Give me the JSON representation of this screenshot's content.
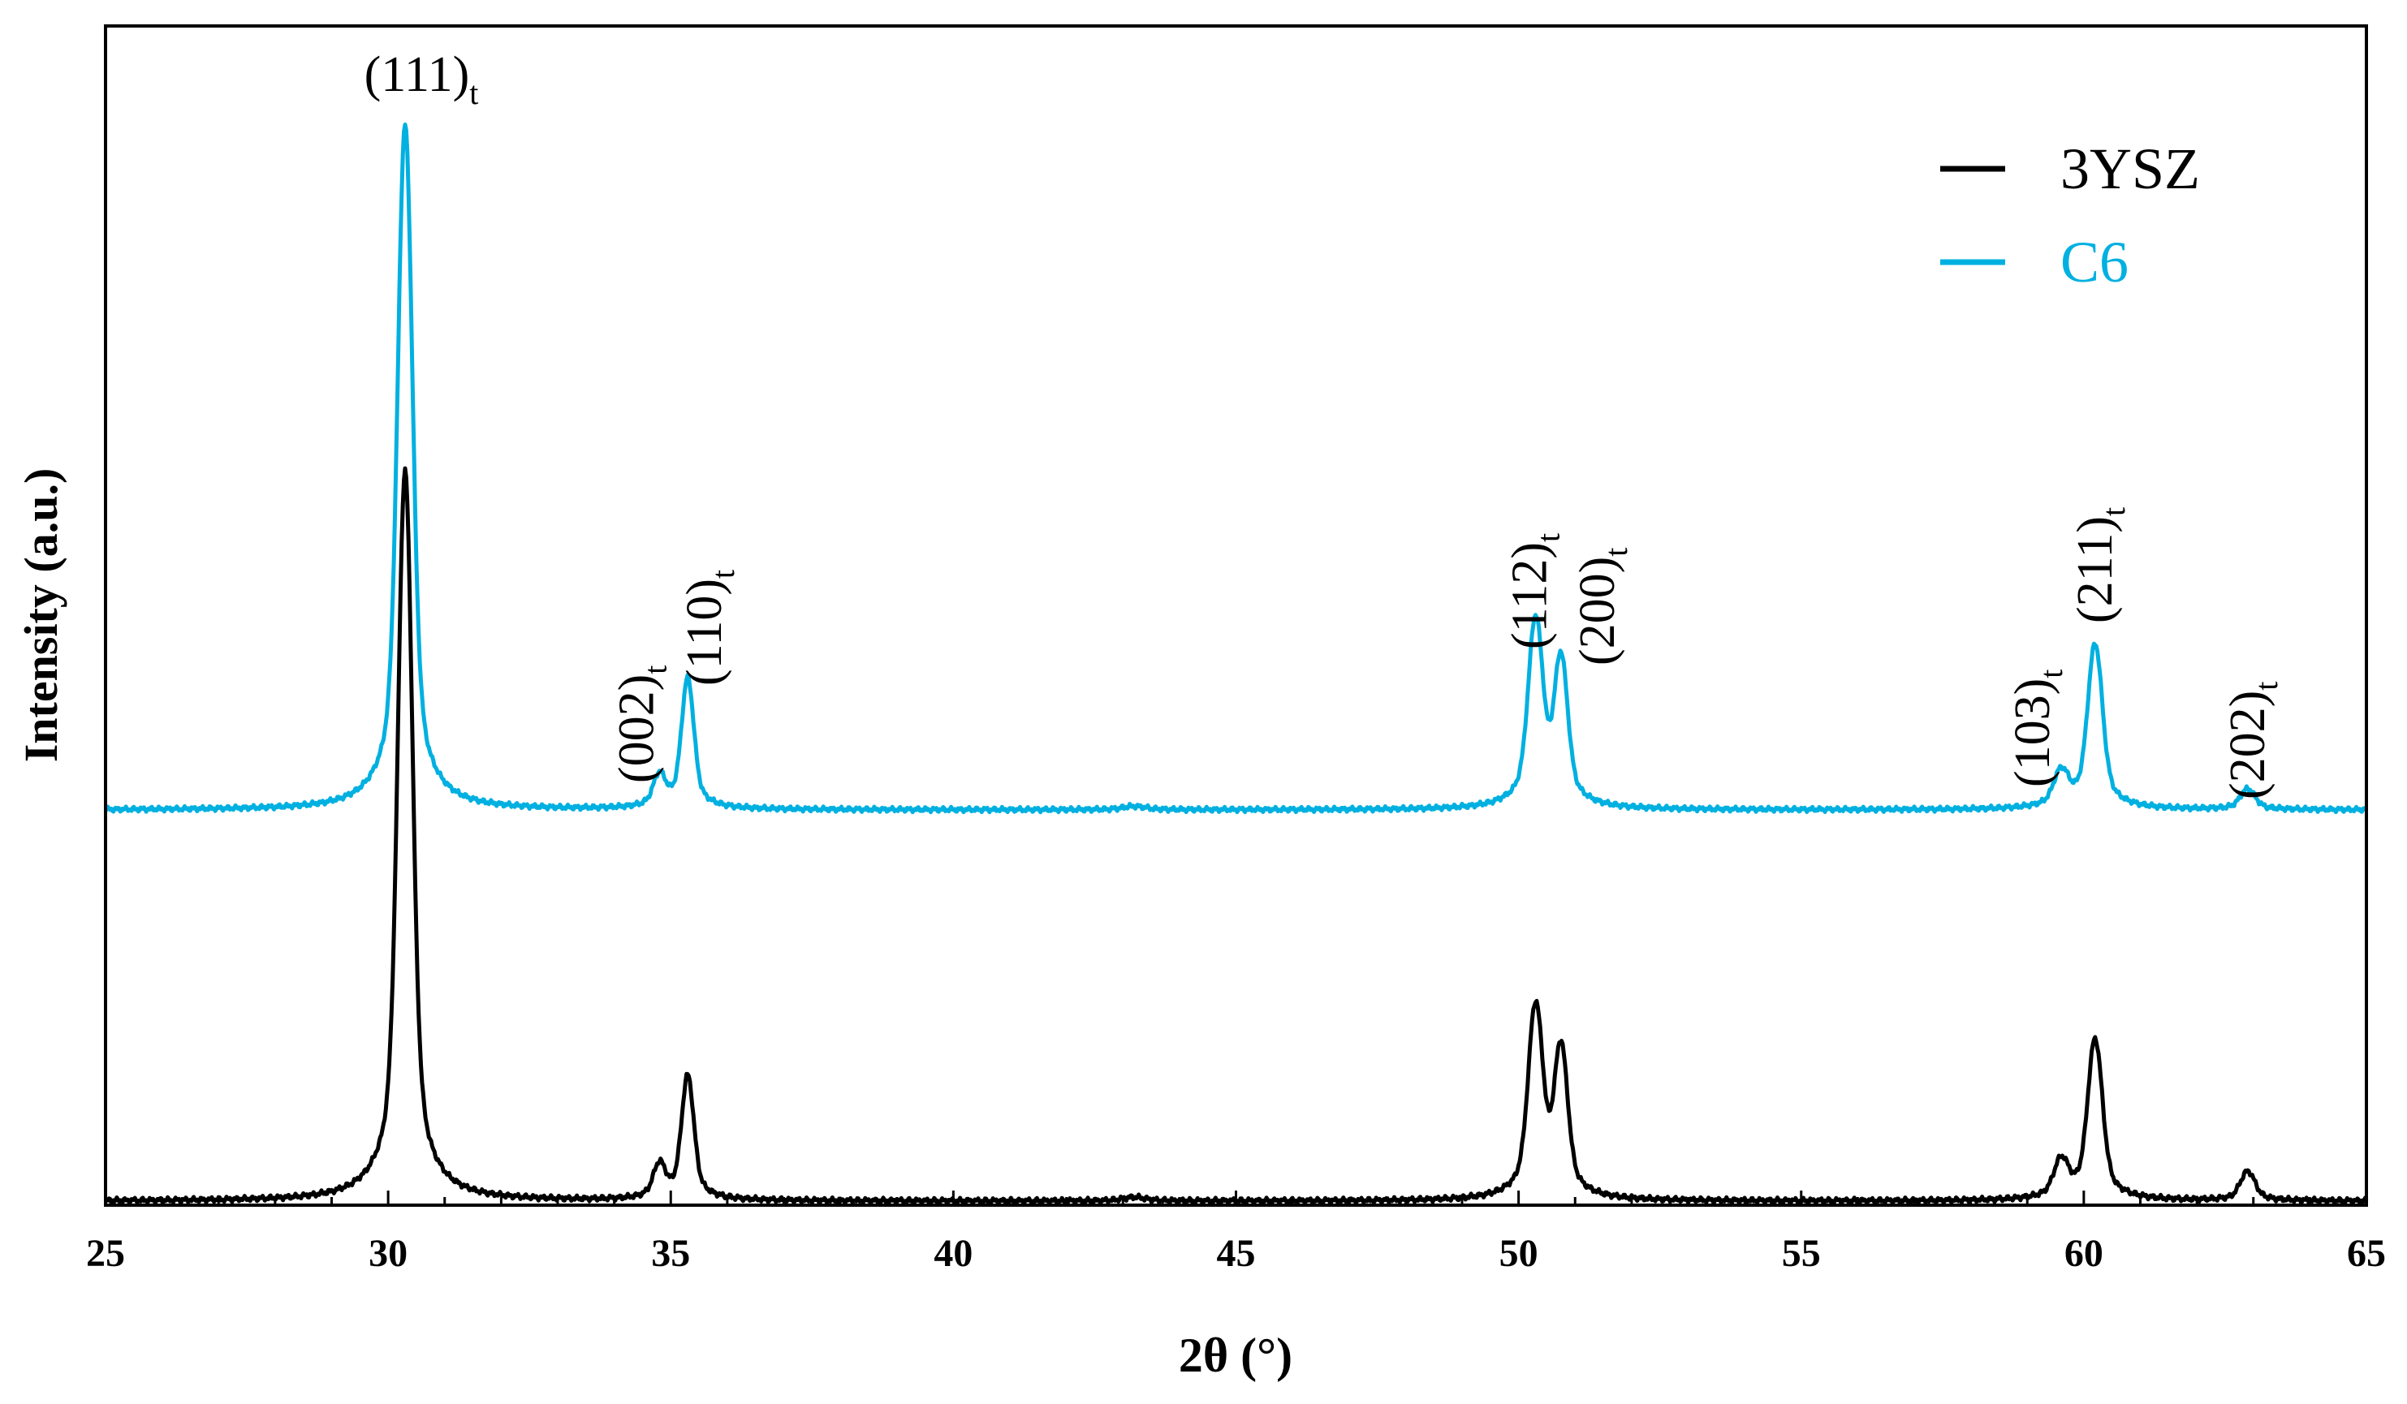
{
  "chart_data": {
    "type": "line",
    "xlabel": "2θ (°)",
    "ylabel": "Intensity (a.u.)",
    "xlim": [
      25,
      65
    ],
    "x_ticks": [
      "25",
      "30",
      "35",
      "40",
      "45",
      "50",
      "55",
      "60",
      "65"
    ],
    "y_ticks_shown": false,
    "grid": false,
    "legend_position": "top-right",
    "colors": {
      "3YSZ": "#000000",
      "C6": "#00b0e0"
    },
    "series": [
      {
        "name": "3YSZ",
        "peaks": [
          {
            "x": 30.3,
            "height": 1.0
          },
          {
            "x": 34.8,
            "height": 0.045
          },
          {
            "x": 35.3,
            "height": 0.17
          },
          {
            "x": 43.2,
            "height": 0.005
          },
          {
            "x": 50.3,
            "height": 0.26
          },
          {
            "x": 50.75,
            "height": 0.2
          },
          {
            "x": 59.6,
            "height": 0.05
          },
          {
            "x": 60.2,
            "height": 0.22
          },
          {
            "x": 62.9,
            "height": 0.04
          }
        ]
      },
      {
        "name": "C6",
        "peaks": [
          {
            "x": 30.3,
            "height": 1.0
          },
          {
            "x": 34.8,
            "height": 0.045
          },
          {
            "x": 35.3,
            "height": 0.19
          },
          {
            "x": 43.2,
            "height": 0.005
          },
          {
            "x": 50.3,
            "height": 0.27
          },
          {
            "x": 50.75,
            "height": 0.21
          },
          {
            "x": 59.6,
            "height": 0.05
          },
          {
            "x": 60.2,
            "height": 0.24
          },
          {
            "x": 62.9,
            "height": 0.03
          }
        ]
      }
    ],
    "annotations": [
      {
        "main": "(111)",
        "sub": "t",
        "x": 30.3,
        "rotate": false
      },
      {
        "main": "(002)",
        "sub": "t",
        "x": 34.4,
        "rotate": true
      },
      {
        "main": "(110)",
        "sub": "t",
        "x": 35.6,
        "rotate": true
      },
      {
        "main": "(112)",
        "sub": "t",
        "x": 50.2,
        "rotate": true
      },
      {
        "main": "(200)",
        "sub": "t",
        "x": 51.4,
        "rotate": true
      },
      {
        "main": "(103)",
        "sub": "t",
        "x": 59.1,
        "rotate": true
      },
      {
        "main": "(211)",
        "sub": "t",
        "x": 60.2,
        "rotate": true
      },
      {
        "main": "(202)",
        "sub": "t",
        "x": 62.9,
        "rotate": true
      }
    ]
  }
}
